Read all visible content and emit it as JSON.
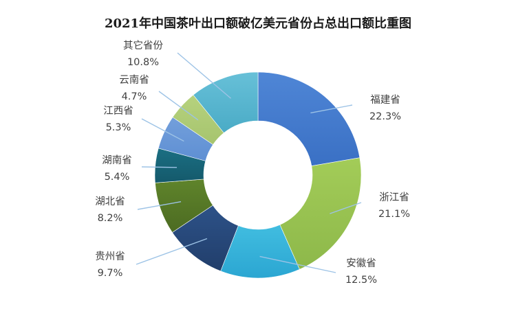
{
  "chart_data": {
    "type": "pie",
    "variant": "donut",
    "title": "2021年中国茶叶出口额破亿美元省份占总出口额比重图",
    "start_angle_deg": 0,
    "direction": "clockwise",
    "slices": [
      {
        "name": "福建省",
        "value": 22.3,
        "label": "22.3%",
        "color": "#3a70c4",
        "color_light": "#4f86d6"
      },
      {
        "name": "浙江省",
        "value": 21.1,
        "label": "21.1%",
        "color": "#8db84a",
        "color_light": "#a3cc58"
      },
      {
        "name": "安徽省",
        "value": 12.5,
        "label": "12.5%",
        "color": "#2ba6d2",
        "color_light": "#41bde0"
      },
      {
        "name": "贵州省",
        "value": 9.7,
        "label": "9.7%",
        "color": "#213e6b",
        "color_light": "#2d5288"
      },
      {
        "name": "湖北省",
        "value": 8.2,
        "label": "8.2%",
        "color": "#4c6b22",
        "color_light": "#5f842b"
      },
      {
        "name": "湖南省",
        "value": 5.4,
        "label": "5.4%",
        "color": "#14596b",
        "color_light": "#1b6f83"
      },
      {
        "name": "江西省",
        "value": 5.3,
        "label": "5.3%",
        "color": "#5e8fd3",
        "color_light": "#739fdb"
      },
      {
        "name": "云南省",
        "value": 4.7,
        "label": "4.7%",
        "color": "#a6c46e",
        "color_light": "#b6d27e"
      },
      {
        "name": "其它省份",
        "value": 10.8,
        "label": "10.8%",
        "color": "#4aabc6",
        "color_light": "#67c0d8"
      }
    ],
    "legend": "none",
    "data_labels": "outside-with-leader-lines"
  }
}
